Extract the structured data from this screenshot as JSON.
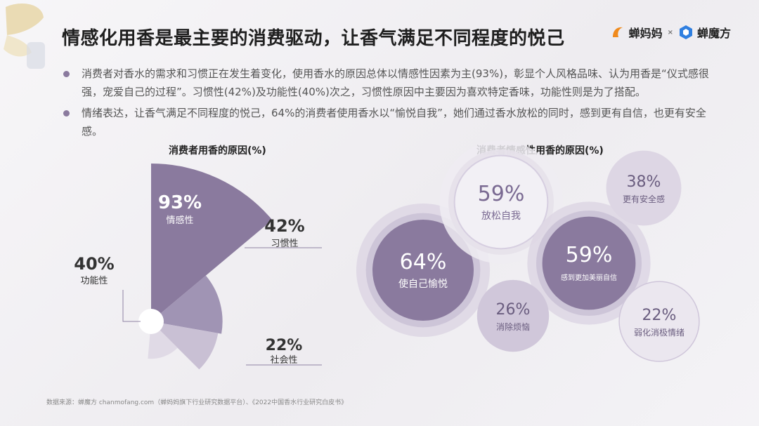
{
  "title": "情感化用香是最主要的消费驱动，让香气满足不同程度的悦己",
  "brand": {
    "left": "蝉妈妈",
    "sep": "×",
    "right": "蝉魔方"
  },
  "bullets": [
    "消费者对香水的需求和习惯正在发生着变化，使用香水的原因总体以情感性因素为主(93%)，彰显个人风格品味、认为用香是“仪式感很强，宠爱自己的过程”。习惯性(42%)及功能性(40%)次之，习惯性原因中主要因为喜欢特定香味，功能性则是为了搭配。",
    "情绪表达，让香气满足不同程度的悦己，64%的消费者使用香水以“愉悦自我”，她们通过香水放松的同时，感到更有自信，也更有安全感。"
  ],
  "colors": {
    "accent": "#8a7a9e",
    "dark": "#7a6a92",
    "mid": "#a094b4",
    "light": "#c4bbd0",
    "pale": "#ddd6e4"
  },
  "chart_data": [
    {
      "type": "pie",
      "title": "消费者用香的原因(%)",
      "categories": [
        "情感性",
        "习惯性",
        "功能性",
        "社会性"
      ],
      "values": [
        93,
        42,
        40,
        22
      ],
      "value_labels": [
        "93%",
        "42%",
        "40%",
        "22%"
      ],
      "colors": [
        "#8a7a9e",
        "#a094b4",
        "#c9c0d4",
        "#e0dae6"
      ]
    },
    {
      "type": "scatter",
      "title": "消费者情感性用香的原因(%)",
      "categories": [
        "使自己愉悦",
        "放松自我",
        "感到更加美丽自信",
        "更有安全感",
        "消除烦恼",
        "弱化消极情绪"
      ],
      "values": [
        64,
        59,
        59,
        38,
        26,
        22
      ],
      "value_labels": [
        "64%",
        "59%",
        "59%",
        "38%",
        "26%",
        "22%"
      ]
    }
  ],
  "footnote": "数据来源：蝉魔方 chanmofang.com（蝉妈妈旗下行业研究数据平台）、《2022中国香水行业研究白皮书》"
}
